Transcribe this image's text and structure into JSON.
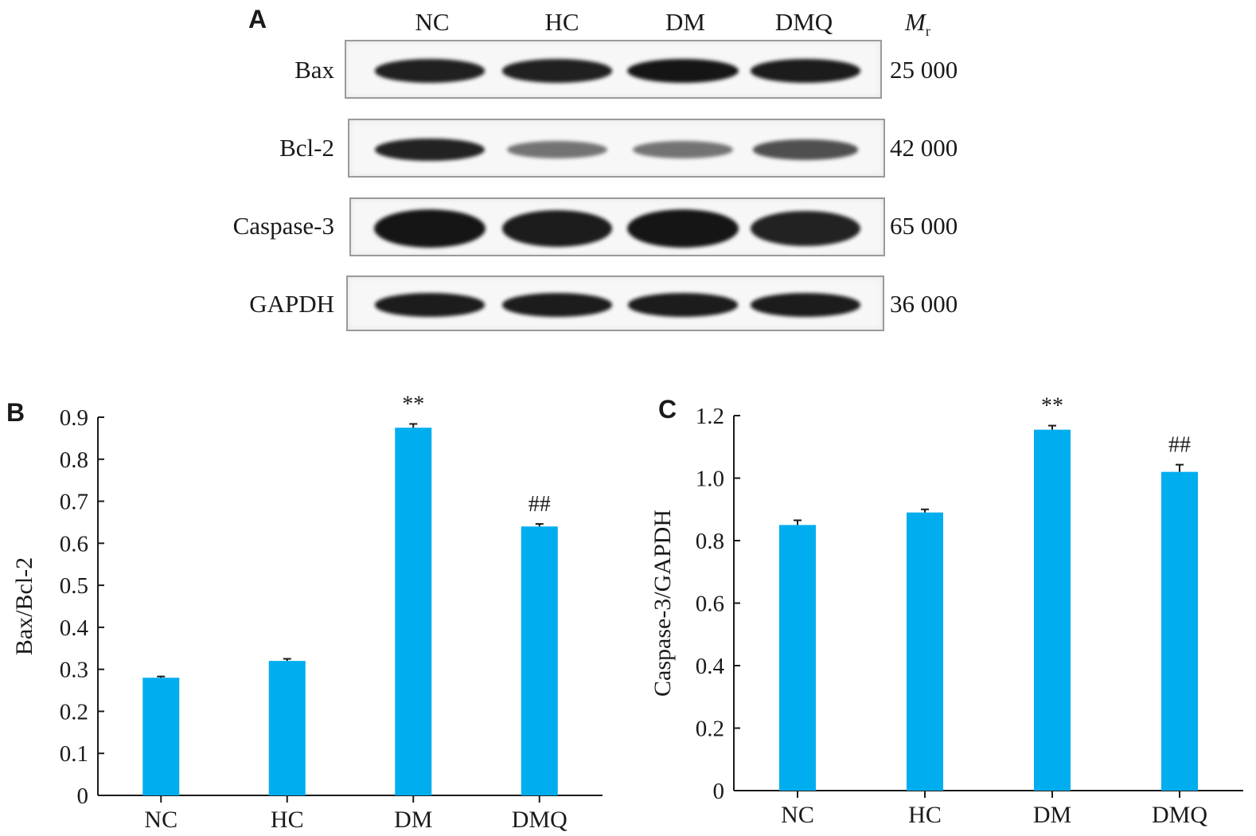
{
  "panel_a": {
    "letter": "A",
    "lanes": [
      "NC",
      "HC",
      "DM",
      "DMQ"
    ],
    "mr_label": "M",
    "mr_sub": "r",
    "rows": [
      {
        "protein": "Bax",
        "mw": "25 000",
        "intensity": [
          0.92,
          0.92,
          1.0,
          0.95
        ]
      },
      {
        "protein": "Bcl-2",
        "mw": "42 000",
        "intensity": [
          0.9,
          0.35,
          0.35,
          0.6
        ]
      },
      {
        "protein": "Caspase-3",
        "mw": "65 000",
        "intensity": [
          1.0,
          0.95,
          1.0,
          0.9
        ]
      },
      {
        "protein": "GAPDH",
        "mw": "36 000",
        "intensity": [
          0.95,
          0.95,
          0.95,
          0.95
        ]
      }
    ]
  },
  "chart_data": [
    {
      "panel": "B",
      "type": "bar",
      "categories": [
        "NC",
        "HC",
        "DM",
        "DMQ"
      ],
      "values": [
        0.28,
        0.32,
        0.875,
        0.64
      ],
      "errors": [
        0.003,
        0.005,
        0.009,
        0.006
      ],
      "annotations": [
        "",
        "",
        "**",
        "##"
      ],
      "ylabel": "Bax/Bcl-2",
      "ylim": [
        0,
        0.9
      ],
      "yticks": [
        "0",
        "0.1",
        "0.2",
        "0.3",
        "0.4",
        "0.5",
        "0.6",
        "0.7",
        "0.8",
        "0.9"
      ],
      "bar_color": "#00aeef",
      "grid": false
    },
    {
      "panel": "C",
      "type": "bar",
      "categories": [
        "NC",
        "HC",
        "DM",
        "DMQ"
      ],
      "values": [
        0.85,
        0.89,
        1.155,
        1.02
      ],
      "errors": [
        0.015,
        0.01,
        0.013,
        0.023
      ],
      "annotations": [
        "",
        "",
        "**",
        "##"
      ],
      "ylabel": "Caspase-3/GAPDH",
      "ylim": [
        0,
        1.2
      ],
      "yticks": [
        "0",
        "0.2",
        "0.4",
        "0.6",
        "0.8",
        "1.0",
        "1.2"
      ],
      "bar_color": "#00aeef",
      "grid": false
    }
  ]
}
